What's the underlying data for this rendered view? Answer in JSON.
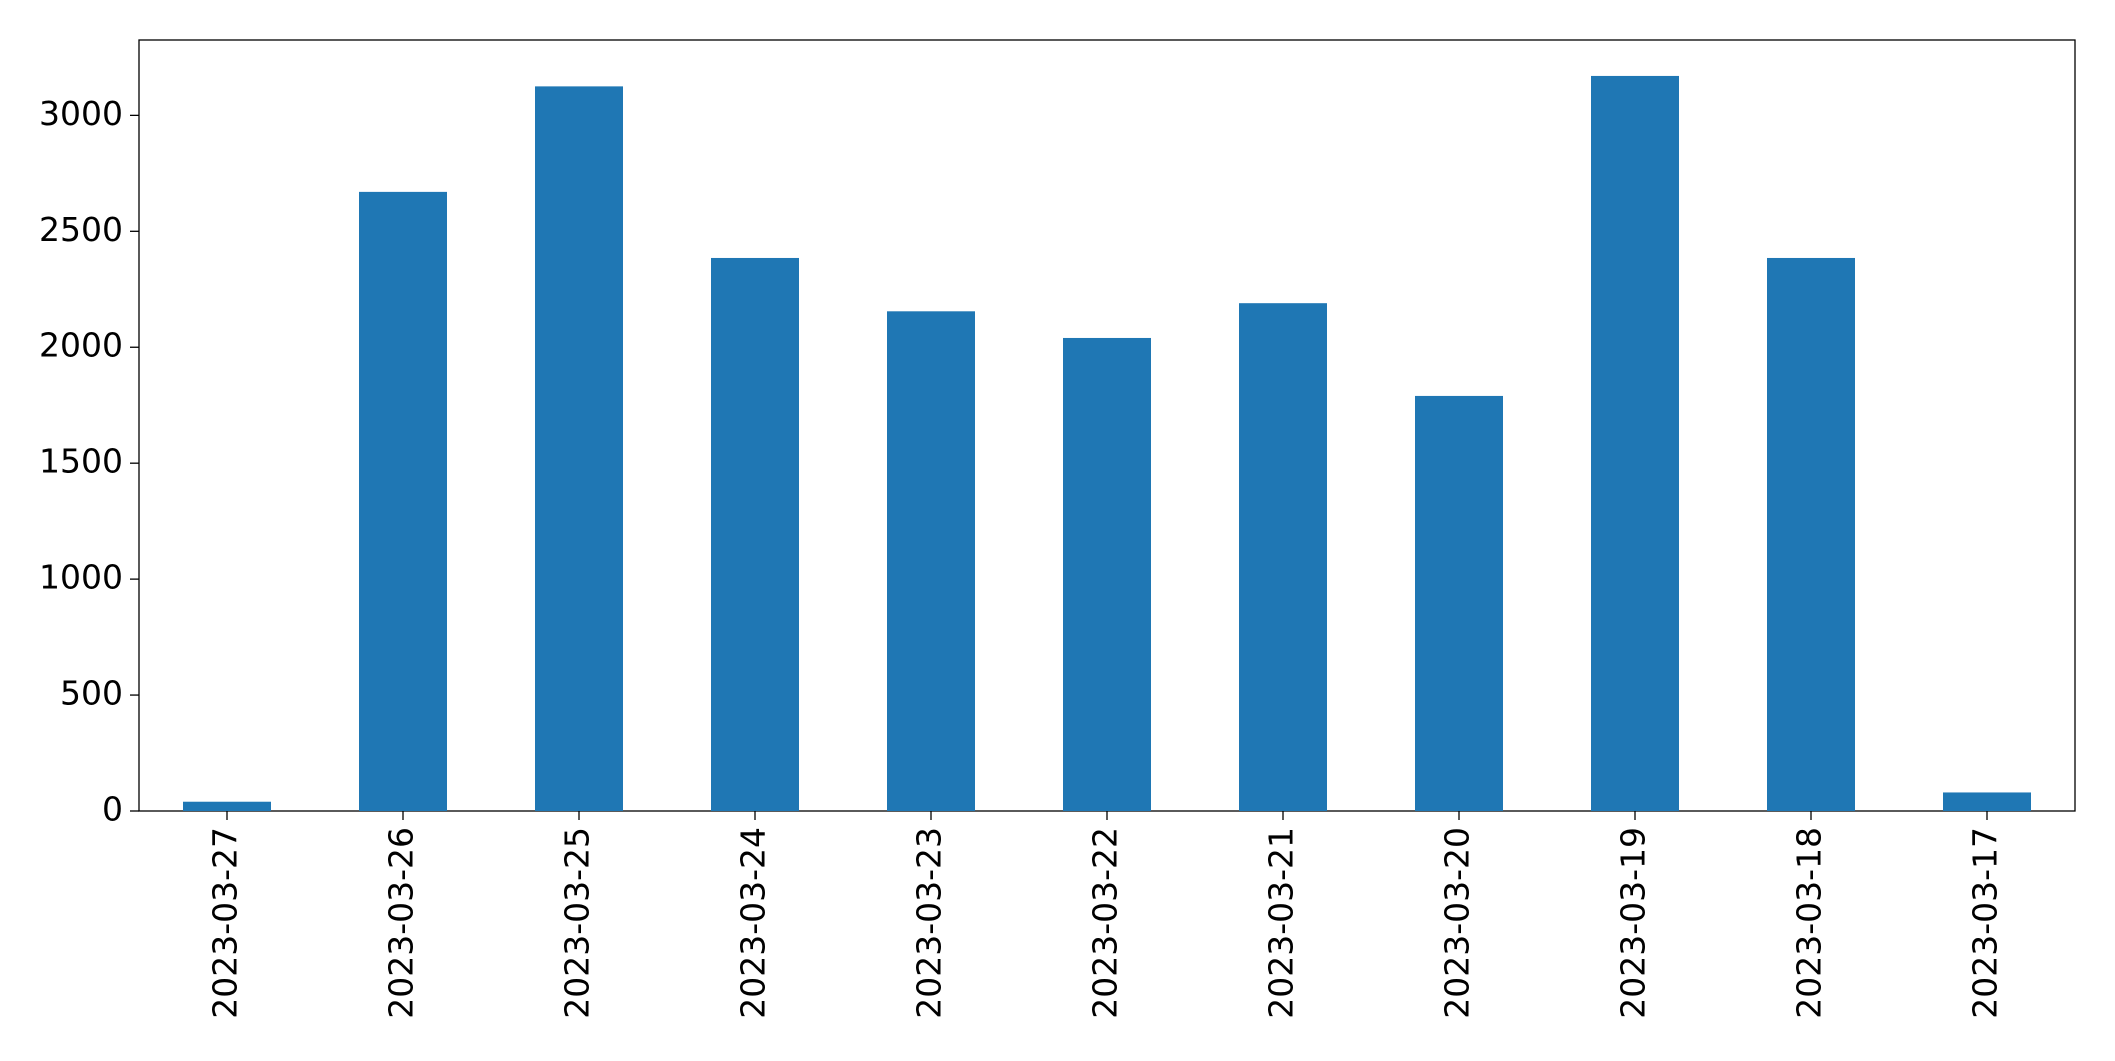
{
  "chart_data": {
    "type": "bar",
    "categories": [
      "2023-03-27",
      "2023-03-26",
      "2023-03-25",
      "2023-03-24",
      "2023-03-23",
      "2023-03-22",
      "2023-03-21",
      "2023-03-20",
      "2023-03-19",
      "2023-03-18",
      "2023-03-17"
    ],
    "values": [
      40,
      2670,
      3125,
      2385,
      2155,
      2040,
      2190,
      1790,
      3170,
      2385,
      80
    ],
    "color": "#1f77b4",
    "ylim": [
      0,
      3325
    ],
    "yticks": [
      0,
      500,
      1000,
      1500,
      2000,
      2500,
      3000
    ],
    "grid": false
  }
}
